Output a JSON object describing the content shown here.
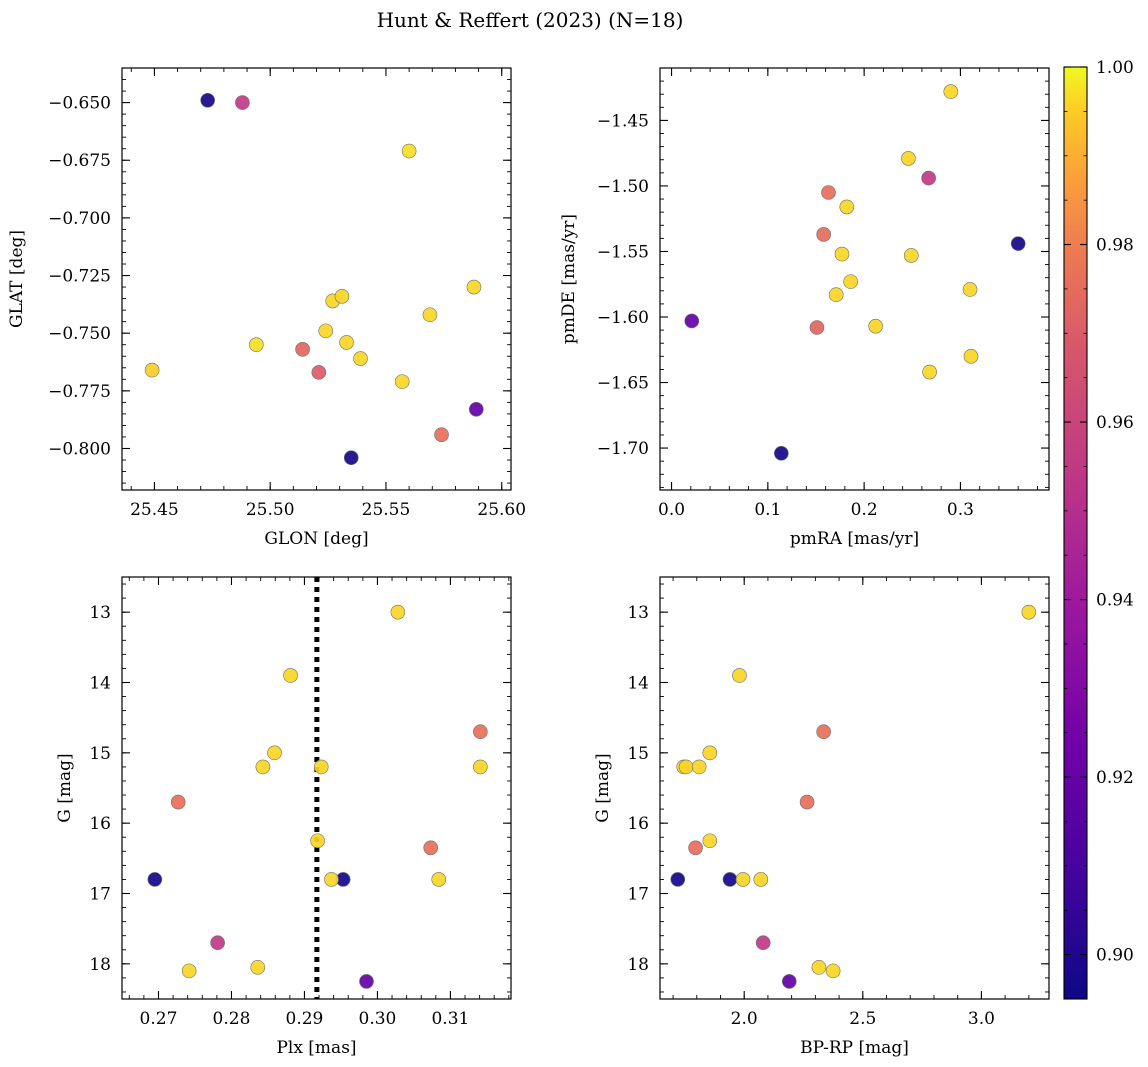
{
  "title": "Hunt & Reffert (2023) (N=18)",
  "colorbar": {
    "range": [
      0.895,
      1.0
    ],
    "ticks": [
      "0.90",
      "0.92",
      "0.94",
      "0.96",
      "0.98",
      "1.00"
    ],
    "tick_values": [
      0.9,
      0.92,
      0.94,
      0.96,
      0.98,
      1.0
    ],
    "colormap": "plasma"
  },
  "chart_data": [
    {
      "type": "scatter",
      "id": "glon-glat",
      "xlabel": "GLON [deg]",
      "ylabel": "GLAT [deg]",
      "xlim": [
        25.436,
        25.604
      ],
      "ylim": [
        -0.818,
        -0.635
      ],
      "y_inverted": false,
      "xticks": [
        25.45,
        25.5,
        25.55,
        25.6
      ],
      "xtick_labels": [
        "25.45",
        "25.50",
        "25.55",
        "25.60"
      ],
      "yticks": [
        -0.65,
        -0.675,
        -0.7,
        -0.725,
        -0.75,
        -0.775,
        -0.8
      ],
      "ytick_labels": [
        "−0.650",
        "−0.675",
        "−0.700",
        "−0.725",
        "−0.750",
        "−0.775",
        "−0.800"
      ],
      "points": [
        {
          "x": 25.473,
          "y": -0.649,
          "c": 0.897
        },
        {
          "x": 25.488,
          "y": -0.65,
          "c": 0.955
        },
        {
          "x": 25.56,
          "y": -0.671,
          "c": 0.997
        },
        {
          "x": 25.449,
          "y": -0.766,
          "c": 0.995
        },
        {
          "x": 25.494,
          "y": -0.755,
          "c": 0.997
        },
        {
          "x": 25.514,
          "y": -0.757,
          "c": 0.973
        },
        {
          "x": 25.521,
          "y": -0.767,
          "c": 0.97
        },
        {
          "x": 25.524,
          "y": -0.749,
          "c": 0.996
        },
        {
          "x": 25.527,
          "y": -0.736,
          "c": 0.996
        },
        {
          "x": 25.531,
          "y": -0.734,
          "c": 0.996
        },
        {
          "x": 25.533,
          "y": -0.754,
          "c": 0.996
        },
        {
          "x": 25.539,
          "y": -0.761,
          "c": 0.996
        },
        {
          "x": 25.535,
          "y": -0.804,
          "c": 0.897
        },
        {
          "x": 25.557,
          "y": -0.771,
          "c": 0.996
        },
        {
          "x": 25.569,
          "y": -0.742,
          "c": 0.996
        },
        {
          "x": 25.574,
          "y": -0.794,
          "c": 0.976
        },
        {
          "x": 25.588,
          "y": -0.73,
          "c": 0.996
        },
        {
          "x": 25.589,
          "y": -0.783,
          "c": 0.92
        }
      ]
    },
    {
      "type": "scatter",
      "id": "pmra-pmde",
      "xlabel": "pmRA [mas/yr]",
      "ylabel": "pmDE [mas/yr]",
      "xlim": [
        -0.012,
        0.392
      ],
      "ylim": [
        -1.732,
        -1.41
      ],
      "y_inverted": false,
      "xticks": [
        0.0,
        0.1,
        0.2,
        0.3
      ],
      "xtick_labels": [
        "0.0",
        "0.1",
        "0.2",
        "0.3"
      ],
      "yticks": [
        -1.45,
        -1.5,
        -1.55,
        -1.6,
        -1.65,
        -1.7
      ],
      "ytick_labels": [
        "−1.45",
        "−1.50",
        "−1.55",
        "−1.60",
        "−1.65",
        "−1.70"
      ],
      "points": [
        {
          "x": 0.29,
          "y": -1.428,
          "c": 0.996
        },
        {
          "x": 0.246,
          "y": -1.479,
          "c": 0.996
        },
        {
          "x": 0.267,
          "y": -1.494,
          "c": 0.955
        },
        {
          "x": 0.163,
          "y": -1.505,
          "c": 0.976
        },
        {
          "x": 0.182,
          "y": -1.516,
          "c": 0.996
        },
        {
          "x": 0.158,
          "y": -1.537,
          "c": 0.975
        },
        {
          "x": 0.36,
          "y": -1.544,
          "c": 0.897
        },
        {
          "x": 0.177,
          "y": -1.552,
          "c": 0.996
        },
        {
          "x": 0.249,
          "y": -1.553,
          "c": 0.996
        },
        {
          "x": 0.186,
          "y": -1.573,
          "c": 0.996
        },
        {
          "x": 0.171,
          "y": -1.583,
          "c": 0.996
        },
        {
          "x": 0.31,
          "y": -1.579,
          "c": 0.996
        },
        {
          "x": 0.021,
          "y": -1.603,
          "c": 0.92
        },
        {
          "x": 0.151,
          "y": -1.608,
          "c": 0.973
        },
        {
          "x": 0.212,
          "y": -1.607,
          "c": 0.996
        },
        {
          "x": 0.311,
          "y": -1.63,
          "c": 0.996
        },
        {
          "x": 0.268,
          "y": -1.642,
          "c": 0.996
        },
        {
          "x": 0.114,
          "y": -1.704,
          "c": 0.897
        }
      ]
    },
    {
      "type": "scatter",
      "id": "plx-g",
      "xlabel": "Plx [mas]",
      "ylabel": "G [mag]",
      "xlim": [
        0.265,
        0.3183
      ],
      "ylim": [
        12.5,
        18.5
      ],
      "y_inverted": true,
      "vline": {
        "x": 0.2917,
        "style": "dotted"
      },
      "xticks": [
        0.27,
        0.28,
        0.29,
        0.3,
        0.31
      ],
      "xtick_labels": [
        "0.27",
        "0.28",
        "0.29",
        "0.30",
        "0.31"
      ],
      "yticks": [
        13,
        14,
        15,
        16,
        17,
        18
      ],
      "ytick_labels": [
        "13",
        "14",
        "15",
        "16",
        "17",
        "18"
      ],
      "points": [
        {
          "x": 0.3028,
          "y": 13.0,
          "c": 0.996
        },
        {
          "x": 0.2881,
          "y": 13.9,
          "c": 0.996
        },
        {
          "x": 0.3141,
          "y": 14.7,
          "c": 0.976
        },
        {
          "x": 0.2859,
          "y": 15.0,
          "c": 0.996
        },
        {
          "x": 0.2843,
          "y": 15.2,
          "c": 0.996
        },
        {
          "x": 0.2923,
          "y": 15.2,
          "c": 0.996
        },
        {
          "x": 0.3141,
          "y": 15.2,
          "c": 0.996
        },
        {
          "x": 0.2727,
          "y": 15.7,
          "c": 0.976
        },
        {
          "x": 0.2918,
          "y": 16.25,
          "c": 0.996
        },
        {
          "x": 0.3073,
          "y": 16.35,
          "c": 0.976
        },
        {
          "x": 0.2695,
          "y": 16.8,
          "c": 0.897
        },
        {
          "x": 0.2953,
          "y": 16.8,
          "c": 0.897
        },
        {
          "x": 0.2937,
          "y": 16.8,
          "c": 0.996
        },
        {
          "x": 0.3084,
          "y": 16.8,
          "c": 0.996
        },
        {
          "x": 0.2781,
          "y": 17.7,
          "c": 0.955
        },
        {
          "x": 0.2836,
          "y": 18.05,
          "c": 0.996
        },
        {
          "x": 0.2742,
          "y": 18.1,
          "c": 0.996
        },
        {
          "x": 0.2985,
          "y": 18.25,
          "c": 0.92
        }
      ]
    },
    {
      "type": "scatter",
      "id": "bprp-g",
      "xlabel": "BP-RP [mag]",
      "ylabel": "G [mag]",
      "xlim": [
        1.645,
        3.285
      ],
      "ylim": [
        12.5,
        18.5
      ],
      "y_inverted": true,
      "xticks": [
        2.0,
        2.5,
        3.0
      ],
      "xtick_labels": [
        "2.0",
        "2.5",
        "3.0"
      ],
      "yticks": [
        13,
        14,
        15,
        16,
        17,
        18
      ],
      "ytick_labels": [
        "13",
        "14",
        "15",
        "16",
        "17",
        "18"
      ],
      "points": [
        {
          "x": 3.2,
          "y": 13.0,
          "c": 0.996
        },
        {
          "x": 1.98,
          "y": 13.9,
          "c": 0.996
        },
        {
          "x": 2.335,
          "y": 14.7,
          "c": 0.976
        },
        {
          "x": 1.855,
          "y": 15.0,
          "c": 0.996
        },
        {
          "x": 1.745,
          "y": 15.2,
          "c": 0.996
        },
        {
          "x": 1.755,
          "y": 15.2,
          "c": 0.996
        },
        {
          "x": 1.81,
          "y": 15.2,
          "c": 0.996
        },
        {
          "x": 2.265,
          "y": 15.7,
          "c": 0.976
        },
        {
          "x": 1.855,
          "y": 16.25,
          "c": 0.996
        },
        {
          "x": 1.795,
          "y": 16.35,
          "c": 0.976
        },
        {
          "x": 1.72,
          "y": 16.8,
          "c": 0.897
        },
        {
          "x": 1.94,
          "y": 16.8,
          "c": 0.897
        },
        {
          "x": 1.995,
          "y": 16.8,
          "c": 0.996
        },
        {
          "x": 2.07,
          "y": 16.8,
          "c": 0.996
        },
        {
          "x": 2.08,
          "y": 17.7,
          "c": 0.955
        },
        {
          "x": 2.315,
          "y": 18.05,
          "c": 0.996
        },
        {
          "x": 2.375,
          "y": 18.1,
          "c": 0.996
        },
        {
          "x": 2.19,
          "y": 18.25,
          "c": 0.92
        }
      ]
    }
  ]
}
